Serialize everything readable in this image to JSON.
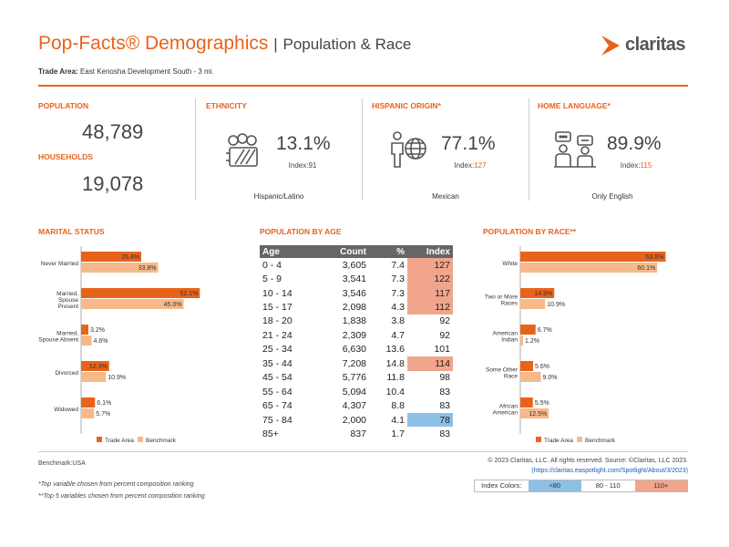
{
  "header": {
    "title": "Pop-Facts® Demographics",
    "separator": "|",
    "subtitle": "Population & Race",
    "logo_text": "claritas",
    "trade_area_label": "Trade Area:",
    "trade_area_value": "East Kenosha Development South - 3 mi."
  },
  "summary": {
    "population_label": "POPULATION",
    "population_value": "48,789",
    "households_label": "HOUSEHOLDS",
    "households_value": "19,078"
  },
  "ethnicity": {
    "label": "ETHNICITY",
    "pct": "13.1%",
    "index_label": "Index:",
    "index_value": "91",
    "caption": "Hispanic/Latino"
  },
  "hispanic": {
    "label": "HISPANIC ORIGIN*",
    "pct": "77.1%",
    "index_label": "Index:",
    "index_value": "127",
    "caption": "Mexican"
  },
  "language": {
    "label": "HOME LANGUAGE*",
    "pct": "89.9%",
    "index_label": "Index:",
    "index_value": "115",
    "caption": "Only English"
  },
  "colors": {
    "trade_area": "#e8631a",
    "benchmark": "#f7b98a",
    "low": "#8ec0e6",
    "high": "#f0a58c",
    "accent": "#e8631a"
  },
  "chart_data": [
    {
      "type": "bar",
      "title": "MARITAL STATUS",
      "orientation": "horizontal",
      "categories": [
        "Never Married",
        "Married, Spouse Present",
        "Married, Spouse Absent",
        "Divorced",
        "Widowed"
      ],
      "series": [
        {
          "name": "Trade Area",
          "values": [
            26.4,
            52.1,
            3.2,
            12.3,
            6.1
          ],
          "labels": [
            "26.4%",
            "52.1%",
            "3.2%",
            "12.3%",
            "6.1%"
          ]
        },
        {
          "name": "Benchmark",
          "values": [
            33.8,
            45.0,
            4.6,
            10.9,
            5.7
          ],
          "labels": [
            "33.8%",
            "45.0%",
            "4.6%",
            "10.9%",
            "5.7%"
          ]
        }
      ]
    },
    {
      "type": "table",
      "title": "POPULATION BY AGE",
      "columns": [
        "Age",
        "Count",
        "%",
        "Index"
      ],
      "rows": [
        [
          "0 - 4",
          "3,605",
          "7.4",
          "127"
        ],
        [
          "5 - 9",
          "3,541",
          "7.3",
          "122"
        ],
        [
          "10 - 14",
          "3,546",
          "7.3",
          "117"
        ],
        [
          "15 - 17",
          "2,098",
          "4.3",
          "112"
        ],
        [
          "18 - 20",
          "1,838",
          "3.8",
          "92"
        ],
        [
          "21 - 24",
          "2,309",
          "4.7",
          "92"
        ],
        [
          "25 - 34",
          "6,630",
          "13.6",
          "101"
        ],
        [
          "35 - 44",
          "7,208",
          "14.8",
          "114"
        ],
        [
          "45 - 54",
          "5,776",
          "11.8",
          "98"
        ],
        [
          "55 - 64",
          "5,094",
          "10.4",
          "83"
        ],
        [
          "65 - 74",
          "4,307",
          "8.8",
          "83"
        ],
        [
          "75 - 84",
          "2,000",
          "4.1",
          "78"
        ],
        [
          "85+",
          "837",
          "1.7",
          "83"
        ]
      ]
    },
    {
      "type": "bar",
      "title": "POPULATION BY RACE**",
      "orientation": "horizontal",
      "categories": [
        "White",
        "Two or More Races",
        "American Indian",
        "Some Other Race",
        "African American"
      ],
      "series": [
        {
          "name": "Trade Area",
          "values": [
            63.8,
            14.9,
            6.7,
            5.6,
            5.5
          ],
          "labels": [
            "63.8%",
            "14.9%",
            "6.7%",
            "5.6%",
            "5.5%"
          ]
        },
        {
          "name": "Benchmark",
          "values": [
            60.1,
            10.9,
            1.2,
            9.0,
            12.5
          ],
          "labels": [
            "60.1%",
            "10.9%",
            "1.2%",
            "9.0%",
            "12.5%"
          ]
        }
      ]
    }
  ],
  "marital_labels": [
    [
      "Never Married"
    ],
    [
      "Married,",
      "Spouse",
      "Present"
    ],
    [
      "Married,",
      "Spouse Absent"
    ],
    [
      "Divorced"
    ],
    [
      "Widowed"
    ]
  ],
  "race_labels": [
    [
      "White"
    ],
    [
      "Two or More",
      "Races"
    ],
    [
      "American",
      "Indian"
    ],
    [
      "Some Other",
      "Race"
    ],
    [
      "African",
      "American"
    ]
  ],
  "legend": {
    "trade_area": "Trade Area",
    "benchmark": "Benchmark"
  },
  "footer": {
    "benchmark": "Benchmark:USA",
    "note1": "*Top variable chosen from percent composition ranking",
    "note2": "**Top 5 variables chosen from percent composition ranking",
    "copyright": "© 2023 Claritas, LLC. All rights reserved. Source: ©Claritas, LLC 2023.",
    "url": "(https://claritas.easpotlight.com/Spotlight/About/3/2023)",
    "index_colors_label": "Index Colors:",
    "low": "<80",
    "mid": "80 - 110",
    "high": "110+"
  }
}
